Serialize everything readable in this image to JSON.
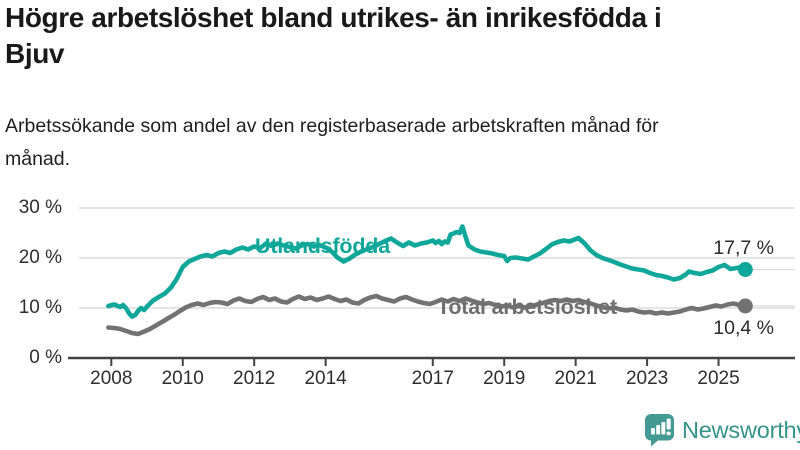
{
  "header": {
    "title": "Högre arbetslöshet bland utrikes- än inrikesfödda i Bjuv",
    "subtitle": "Arbetssökande som andel av den registerbaserade arbetskraften månad för månad."
  },
  "footer": {
    "brand": "Newsworthy",
    "logo_icon": "bar-chart-speech-bubble"
  },
  "colors": {
    "accent_teal": "#0fa79a",
    "line_gray": "#727272",
    "axis_text": "#2e2e2e",
    "gridline": "#dbdbdb",
    "axis_line": "#424242",
    "logo_teal": "#429a92",
    "title_text": "#191919"
  },
  "chart_data": {
    "type": "line",
    "title": "Högre arbetslöshet bland utrikes- än inrikesfödda i Bjuv",
    "subtitle": "Arbetssökande som andel av den registerbaserade arbetskraften månad för månad.",
    "xlabel": "",
    "ylabel": "",
    "ylim": [
      0,
      30
    ],
    "xlim": [
      2007.9,
      2026.1
    ],
    "grid": "horizontal",
    "legend_position": "inline-labels",
    "y_ticks": [
      {
        "value": 0,
        "label": "0 %"
      },
      {
        "value": 10,
        "label": "10 %"
      },
      {
        "value": 20,
        "label": "20 %"
      },
      {
        "value": 30,
        "label": "30 %"
      }
    ],
    "x_ticks": [
      {
        "year": 2008,
        "label": "2008"
      },
      {
        "year": 2010,
        "label": "2010"
      },
      {
        "year": 2012,
        "label": "2012"
      },
      {
        "year": 2014,
        "label": "2014"
      },
      {
        "year": 2017,
        "label": "2017"
      },
      {
        "year": 2019,
        "label": "2019"
      },
      {
        "year": 2021,
        "label": "2021"
      },
      {
        "year": 2023,
        "label": "2023"
      },
      {
        "year": 2025,
        "label": "2025"
      }
    ],
    "series": [
      {
        "name": "Utlandsfödda",
        "color": "#0fa79a",
        "end_label": "17,7 %",
        "end_value": 17.7,
        "points": [
          [
            2007.92,
            10.4
          ],
          [
            2008.08,
            10.7
          ],
          [
            2008.25,
            10.2
          ],
          [
            2008.33,
            10.6
          ],
          [
            2008.42,
            9.9
          ],
          [
            2008.5,
            8.9
          ],
          [
            2008.58,
            8.3
          ],
          [
            2008.67,
            8.6
          ],
          [
            2008.75,
            9.4
          ],
          [
            2008.83,
            10.0
          ],
          [
            2008.92,
            9.6
          ],
          [
            2009.0,
            10.3
          ],
          [
            2009.17,
            11.5
          ],
          [
            2009.33,
            12.2
          ],
          [
            2009.5,
            12.9
          ],
          [
            2009.67,
            14.1
          ],
          [
            2009.83,
            15.8
          ],
          [
            2010.0,
            18.2
          ],
          [
            2010.17,
            19.3
          ],
          [
            2010.33,
            19.8
          ],
          [
            2010.5,
            20.3
          ],
          [
            2010.67,
            20.6
          ],
          [
            2010.83,
            20.3
          ],
          [
            2011.0,
            21.0
          ],
          [
            2011.17,
            21.3
          ],
          [
            2011.33,
            21.0
          ],
          [
            2011.5,
            21.7
          ],
          [
            2011.67,
            22.1
          ],
          [
            2011.83,
            21.7
          ],
          [
            2012.0,
            22.3
          ],
          [
            2012.17,
            22.0
          ],
          [
            2012.33,
            22.9
          ],
          [
            2012.5,
            22.4
          ],
          [
            2012.67,
            22.9
          ],
          [
            2012.83,
            22.5
          ],
          [
            2013.0,
            22.2
          ],
          [
            2013.17,
            21.9
          ],
          [
            2013.33,
            22.5
          ],
          [
            2013.5,
            22.8
          ],
          [
            2013.67,
            22.3
          ],
          [
            2013.83,
            22.6
          ],
          [
            2014.0,
            22.1
          ],
          [
            2014.17,
            21.3
          ],
          [
            2014.33,
            20.1
          ],
          [
            2014.5,
            19.3
          ],
          [
            2014.67,
            19.9
          ],
          [
            2014.83,
            20.7
          ],
          [
            2015.0,
            21.3
          ],
          [
            2015.17,
            21.8
          ],
          [
            2015.33,
            22.2
          ],
          [
            2015.5,
            22.8
          ],
          [
            2015.67,
            23.4
          ],
          [
            2015.83,
            23.9
          ],
          [
            2016.0,
            23.1
          ],
          [
            2016.17,
            22.4
          ],
          [
            2016.33,
            23.1
          ],
          [
            2016.5,
            22.5
          ],
          [
            2016.67,
            22.9
          ],
          [
            2016.83,
            23.1
          ],
          [
            2017.0,
            23.5
          ],
          [
            2017.08,
            23.0
          ],
          [
            2017.17,
            23.4
          ],
          [
            2017.25,
            22.8
          ],
          [
            2017.33,
            23.3
          ],
          [
            2017.42,
            23.1
          ],
          [
            2017.5,
            24.7
          ],
          [
            2017.58,
            24.9
          ],
          [
            2017.67,
            25.2
          ],
          [
            2017.75,
            25.0
          ],
          [
            2017.83,
            26.3
          ],
          [
            2017.92,
            24.2
          ],
          [
            2018.0,
            22.5
          ],
          [
            2018.17,
            21.7
          ],
          [
            2018.33,
            21.3
          ],
          [
            2018.5,
            21.1
          ],
          [
            2018.67,
            20.9
          ],
          [
            2018.83,
            20.6
          ],
          [
            2019.0,
            20.4
          ],
          [
            2019.08,
            19.4
          ],
          [
            2019.17,
            20.0
          ],
          [
            2019.33,
            20.1
          ],
          [
            2019.5,
            19.9
          ],
          [
            2019.67,
            19.7
          ],
          [
            2019.83,
            20.3
          ],
          [
            2020.0,
            20.9
          ],
          [
            2020.17,
            21.8
          ],
          [
            2020.33,
            22.7
          ],
          [
            2020.5,
            23.2
          ],
          [
            2020.67,
            23.5
          ],
          [
            2020.83,
            23.3
          ],
          [
            2021.0,
            23.8
          ],
          [
            2021.08,
            24.0
          ],
          [
            2021.25,
            22.9
          ],
          [
            2021.42,
            21.5
          ],
          [
            2021.58,
            20.6
          ],
          [
            2021.75,
            20.0
          ],
          [
            2021.92,
            19.6
          ],
          [
            2022.08,
            19.2
          ],
          [
            2022.25,
            18.7
          ],
          [
            2022.42,
            18.3
          ],
          [
            2022.58,
            17.9
          ],
          [
            2022.75,
            17.7
          ],
          [
            2022.92,
            17.5
          ],
          [
            2023.08,
            17.0
          ],
          [
            2023.25,
            16.6
          ],
          [
            2023.42,
            16.4
          ],
          [
            2023.58,
            16.1
          ],
          [
            2023.75,
            15.7
          ],
          [
            2023.92,
            16.0
          ],
          [
            2024.08,
            16.7
          ],
          [
            2024.17,
            17.3
          ],
          [
            2024.33,
            17.0
          ],
          [
            2024.5,
            16.8
          ],
          [
            2024.67,
            17.2
          ],
          [
            2024.83,
            17.5
          ],
          [
            2025.0,
            18.2
          ],
          [
            2025.17,
            18.6
          ],
          [
            2025.33,
            17.8
          ],
          [
            2025.5,
            18.0
          ],
          [
            2025.67,
            18.2
          ],
          [
            2025.75,
            17.7
          ]
        ]
      },
      {
        "name": "Total arbetslöshet",
        "color": "#727272",
        "end_label": "10,4 %",
        "end_value": 10.4,
        "points": [
          [
            2007.92,
            6.1
          ],
          [
            2008.08,
            6.0
          ],
          [
            2008.25,
            5.8
          ],
          [
            2008.42,
            5.4
          ],
          [
            2008.58,
            5.0
          ],
          [
            2008.75,
            4.8
          ],
          [
            2008.92,
            5.3
          ],
          [
            2009.08,
            5.8
          ],
          [
            2009.25,
            6.5
          ],
          [
            2009.42,
            7.2
          ],
          [
            2009.58,
            7.9
          ],
          [
            2009.75,
            8.6
          ],
          [
            2009.92,
            9.4
          ],
          [
            2010.08,
            10.1
          ],
          [
            2010.25,
            10.6
          ],
          [
            2010.42,
            10.9
          ],
          [
            2010.58,
            10.6
          ],
          [
            2010.75,
            11.0
          ],
          [
            2010.92,
            11.2
          ],
          [
            2011.08,
            11.1
          ],
          [
            2011.25,
            10.8
          ],
          [
            2011.42,
            11.5
          ],
          [
            2011.58,
            11.9
          ],
          [
            2011.75,
            11.4
          ],
          [
            2011.92,
            11.2
          ],
          [
            2012.08,
            11.8
          ],
          [
            2012.25,
            12.2
          ],
          [
            2012.42,
            11.6
          ],
          [
            2012.58,
            11.9
          ],
          [
            2012.75,
            11.3
          ],
          [
            2012.92,
            11.1
          ],
          [
            2013.08,
            11.8
          ],
          [
            2013.25,
            12.3
          ],
          [
            2013.42,
            11.8
          ],
          [
            2013.58,
            12.1
          ],
          [
            2013.75,
            11.6
          ],
          [
            2013.92,
            11.9
          ],
          [
            2014.08,
            12.3
          ],
          [
            2014.25,
            11.8
          ],
          [
            2014.42,
            11.4
          ],
          [
            2014.58,
            11.7
          ],
          [
            2014.75,
            11.1
          ],
          [
            2014.92,
            10.9
          ],
          [
            2015.08,
            11.6
          ],
          [
            2015.25,
            12.1
          ],
          [
            2015.42,
            12.4
          ],
          [
            2015.58,
            11.9
          ],
          [
            2015.75,
            11.6
          ],
          [
            2015.92,
            11.3
          ],
          [
            2016.08,
            11.9
          ],
          [
            2016.25,
            12.2
          ],
          [
            2016.42,
            11.7
          ],
          [
            2016.58,
            11.3
          ],
          [
            2016.75,
            11.0
          ],
          [
            2016.92,
            10.8
          ],
          [
            2017.08,
            11.2
          ],
          [
            2017.25,
            11.7
          ],
          [
            2017.42,
            11.3
          ],
          [
            2017.58,
            11.8
          ],
          [
            2017.75,
            11.4
          ],
          [
            2017.92,
            11.9
          ],
          [
            2018.08,
            11.5
          ],
          [
            2018.25,
            11.1
          ],
          [
            2018.42,
            10.8
          ],
          [
            2018.58,
            11.0
          ],
          [
            2018.75,
            10.6
          ],
          [
            2018.92,
            10.3
          ],
          [
            2019.08,
            10.5
          ],
          [
            2019.25,
            10.1
          ],
          [
            2019.42,
            10.4
          ],
          [
            2019.58,
            10.1
          ],
          [
            2019.75,
            10.3
          ],
          [
            2019.92,
            10.7
          ],
          [
            2020.08,
            11.0
          ],
          [
            2020.25,
            11.4
          ],
          [
            2020.42,
            11.6
          ],
          [
            2020.58,
            11.4
          ],
          [
            2020.75,
            11.7
          ],
          [
            2020.92,
            11.4
          ],
          [
            2021.08,
            11.6
          ],
          [
            2021.25,
            11.2
          ],
          [
            2021.42,
            10.9
          ],
          [
            2021.58,
            10.5
          ],
          [
            2021.75,
            10.2
          ],
          [
            2021.92,
            9.9
          ],
          [
            2022.08,
            10.1
          ],
          [
            2022.25,
            9.7
          ],
          [
            2022.42,
            9.5
          ],
          [
            2022.58,
            9.7
          ],
          [
            2022.75,
            9.3
          ],
          [
            2022.92,
            9.1
          ],
          [
            2023.08,
            9.2
          ],
          [
            2023.25,
            8.9
          ],
          [
            2023.42,
            9.1
          ],
          [
            2023.58,
            8.9
          ],
          [
            2023.75,
            9.1
          ],
          [
            2023.92,
            9.3
          ],
          [
            2024.08,
            9.7
          ],
          [
            2024.25,
            10.0
          ],
          [
            2024.42,
            9.7
          ],
          [
            2024.58,
            9.9
          ],
          [
            2024.75,
            10.2
          ],
          [
            2024.92,
            10.5
          ],
          [
            2025.08,
            10.3
          ],
          [
            2025.25,
            10.7
          ],
          [
            2025.42,
            10.9
          ],
          [
            2025.58,
            10.6
          ],
          [
            2025.75,
            10.4
          ]
        ]
      }
    ]
  }
}
